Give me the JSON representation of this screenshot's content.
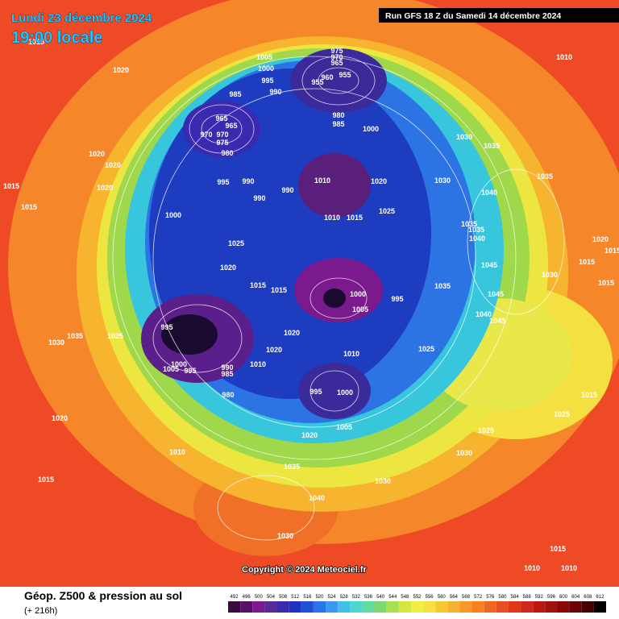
{
  "header": {
    "date": "Lundi 23 décembre 2024",
    "time": "19:00 locale",
    "run": "Run GFS 18 Z du Samedi 14 décembre 2024"
  },
  "copyright": "Copyright © 2024 Meteociel.fr",
  "footer": {
    "title": "Géop. Z500 & pression au sol",
    "lead": "(+ 216h)"
  },
  "legend": {
    "levels": [
      492,
      496,
      500,
      504,
      508,
      512,
      516,
      520,
      524,
      528,
      532,
      536,
      540,
      544,
      548,
      552,
      556,
      560,
      564,
      568,
      572,
      576,
      580,
      584,
      588,
      592,
      596,
      600,
      604,
      608,
      612
    ],
    "colors": [
      "#3b0a3f",
      "#5a0f66",
      "#7a1a8c",
      "#5a2a9a",
      "#3a2ab0",
      "#2030c0",
      "#1f50d8",
      "#2a74e8",
      "#3a9af0",
      "#40bfe8",
      "#48d8d0",
      "#60dca0",
      "#7ed870",
      "#a8e050",
      "#d0e840",
      "#f0f040",
      "#f8e040",
      "#f8c830",
      "#f8b030",
      "#f89828",
      "#f88020",
      "#f06820",
      "#e85020",
      "#e03818",
      "#d02818",
      "#b81810",
      "#a01010",
      "#880808",
      "#680404",
      "#400000",
      "#000000"
    ]
  },
  "isobar_labels": [
    "1015",
    "1020",
    "1005",
    "1000",
    "995",
    "990",
    "975",
    "970",
    "965",
    "960",
    "955",
    "955",
    "985",
    "965",
    "965",
    "970",
    "970",
    "975",
    "980",
    "980",
    "985",
    "1000",
    "1010",
    "1030",
    "1035",
    "1020",
    "1020",
    "1015",
    "1020",
    "1015",
    "995",
    "990",
    "990",
    "990",
    "1010",
    "1020",
    "1025",
    "1030",
    "1040",
    "1035",
    "1000",
    "1025",
    "1020",
    "1015",
    "1015",
    "1010",
    "1015",
    "1035",
    "1035",
    "1040",
    "1045",
    "1035",
    "1045",
    "1040",
    "1045",
    "1030",
    "1020",
    "1015",
    "1015",
    "1015",
    "995",
    "1000",
    "995",
    "1005",
    "1020",
    "1025",
    "1035",
    "1030",
    "1000",
    "1005",
    "995",
    "990",
    "985",
    "1010",
    "1020",
    "1010",
    "995",
    "1000",
    "1025",
    "980",
    "1005",
    "1020",
    "1025",
    "1030",
    "1015",
    "1025",
    "1020",
    "1010",
    "1015",
    "1035",
    "1030",
    "1040",
    "1030",
    "1015",
    "1010",
    "1010"
  ]
}
